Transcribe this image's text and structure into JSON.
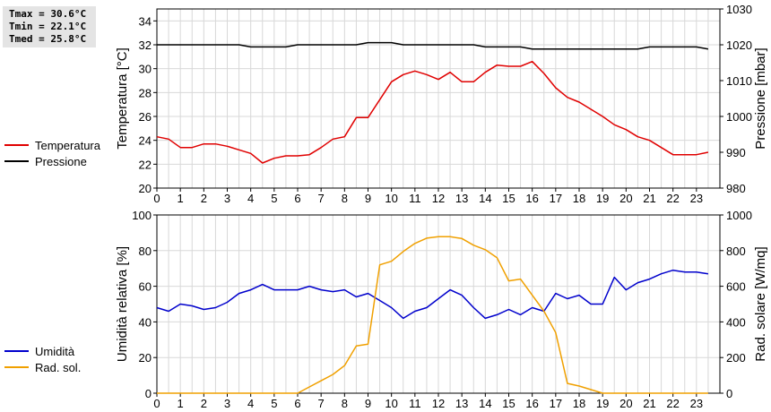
{
  "stats": {
    "tmax": "Tmax = 30.6°C",
    "tmin": "Tmin = 22.1°C",
    "tmed": "Tmed = 25.8°C"
  },
  "chart_data": [
    {
      "type": "line",
      "ylabel": "Temperatura [°C]",
      "y2label": "Pressione [mbar]",
      "xlim": [
        0,
        24
      ],
      "xticks": [
        "0",
        "1",
        "2",
        "3",
        "4",
        "5",
        "6",
        "7",
        "8",
        "9",
        "10",
        "11",
        "12",
        "13",
        "14",
        "15",
        "16",
        "17",
        "18",
        "19",
        "20",
        "21",
        "22",
        "23"
      ],
      "ylim": [
        20,
        35
      ],
      "yticks": [
        "20",
        "22",
        "24",
        "26",
        "28",
        "30",
        "32",
        "34"
      ],
      "y2lim": [
        980,
        1030
      ],
      "y2ticks": [
        "980",
        "990",
        "1000",
        "1010",
        "1020",
        "1030"
      ],
      "grid": true,
      "legend_position": "left",
      "series": [
        {
          "name": "Temperatura",
          "axis": "left",
          "color": "#e00000",
          "x": [
            0,
            0.5,
            1,
            1.5,
            2,
            2.5,
            3,
            3.5,
            4,
            4.5,
            5,
            5.5,
            6,
            6.5,
            7,
            7.5,
            8,
            8.5,
            9,
            9.5,
            10,
            10.5,
            11,
            11.5,
            12,
            12.5,
            13,
            13.5,
            14,
            14.5,
            15,
            15.5,
            16,
            16.5,
            17,
            17.5,
            18,
            18.5,
            19,
            19.5,
            20,
            20.5,
            21,
            21.5,
            22,
            22.5,
            23,
            23.5
          ],
          "values": [
            24.3,
            24.1,
            23.4,
            23.4,
            23.7,
            23.7,
            23.5,
            23.2,
            22.9,
            22.1,
            22.5,
            22.7,
            22.7,
            22.8,
            23.4,
            24.1,
            24.3,
            25.9,
            25.9,
            27.4,
            28.9,
            29.5,
            29.8,
            29.5,
            29.1,
            29.7,
            28.9,
            28.9,
            29.7,
            30.3,
            30.2,
            30.2,
            30.6,
            29.6,
            28.4,
            27.6,
            27.2,
            26.6,
            26.0,
            25.3,
            24.9,
            24.3,
            24.0,
            23.4,
            22.8,
            22.8,
            22.8,
            23.0
          ]
        },
        {
          "name": "Pressione",
          "axis": "right",
          "color": "#000000",
          "x": [
            0,
            0.5,
            1,
            1.5,
            2,
            2.5,
            3,
            3.5,
            4,
            4.5,
            5,
            5.5,
            6,
            6.5,
            7,
            7.5,
            8,
            8.5,
            9,
            9.5,
            10,
            10.5,
            11,
            11.5,
            12,
            12.5,
            13,
            13.5,
            14,
            14.5,
            15,
            15.5,
            16,
            16.5,
            17,
            17.5,
            18,
            18.5,
            19,
            19.5,
            20,
            20.5,
            21,
            21.5,
            22,
            22.5,
            23,
            23.5
          ],
          "values": [
            1020,
            1020,
            1020,
            1020,
            1020,
            1020,
            1020,
            1020,
            1019.4,
            1019.4,
            1019.4,
            1019.4,
            1020,
            1020,
            1020,
            1020,
            1020,
            1020,
            1020.6,
            1020.6,
            1020.6,
            1020,
            1020,
            1020,
            1020,
            1020,
            1020,
            1020,
            1019.4,
            1019.4,
            1019.4,
            1019.4,
            1018.8,
            1018.8,
            1018.8,
            1018.8,
            1018.8,
            1018.8,
            1018.8,
            1018.8,
            1018.8,
            1018.8,
            1019.4,
            1019.4,
            1019.4,
            1019.4,
            1019.4,
            1018.8
          ]
        }
      ]
    },
    {
      "type": "line",
      "ylabel": "Umidità relativa [%]",
      "y2label": "Rad. solare [W/mq]",
      "xlim": [
        0,
        24
      ],
      "xticks": [
        "0",
        "1",
        "2",
        "3",
        "4",
        "5",
        "6",
        "7",
        "8",
        "9",
        "10",
        "11",
        "12",
        "13",
        "14",
        "15",
        "16",
        "17",
        "18",
        "19",
        "20",
        "21",
        "22",
        "23"
      ],
      "ylim": [
        0,
        100
      ],
      "yticks": [
        "0",
        "20",
        "40",
        "60",
        "80",
        "100"
      ],
      "y2lim": [
        0,
        1000
      ],
      "y2ticks": [
        "0",
        "200",
        "400",
        "600",
        "800",
        "1000"
      ],
      "grid": true,
      "legend_position": "left",
      "series": [
        {
          "name": "Umidità",
          "axis": "left",
          "color": "#0000cc",
          "x": [
            0,
            0.5,
            1,
            1.5,
            2,
            2.5,
            3,
            3.5,
            4,
            4.5,
            5,
            5.5,
            6,
            6.5,
            7,
            7.5,
            8,
            8.5,
            9,
            9.5,
            10,
            10.5,
            11,
            11.5,
            12,
            12.5,
            13,
            13.5,
            14,
            14.5,
            15,
            15.5,
            16,
            16.5,
            17,
            17.5,
            18,
            18.5,
            19,
            19.5,
            20,
            20.5,
            21,
            21.5,
            22,
            22.5,
            23,
            23.5
          ],
          "values": [
            48,
            46,
            50,
            49,
            47,
            48,
            51,
            56,
            58,
            61,
            58,
            58,
            58,
            60,
            58,
            57,
            58,
            54,
            56,
            52,
            48,
            42,
            46,
            48,
            53,
            58,
            55,
            48,
            42,
            44,
            47,
            44,
            48,
            46,
            56,
            53,
            55,
            50,
            50,
            65,
            58,
            62,
            64,
            67,
            69,
            68,
            68,
            67
          ]
        },
        {
          "name": "Rad. sol.",
          "axis": "right",
          "color": "#f0a000",
          "x": [
            0,
            0.5,
            1,
            1.5,
            2,
            2.5,
            3,
            3.5,
            4,
            4.5,
            5,
            5.5,
            6,
            6.5,
            7,
            7.5,
            8,
            8.5,
            9,
            9.5,
            10,
            10.5,
            11,
            11.5,
            12,
            12.5,
            13,
            13.5,
            14,
            14.5,
            15,
            15.5,
            16,
            16.5,
            17,
            17.5,
            18,
            18.5,
            19,
            19.5,
            20,
            20.5,
            21,
            21.5,
            22,
            22.5,
            23,
            23.5
          ],
          "values": [
            0,
            0,
            0,
            0,
            0,
            0,
            0,
            0,
            0,
            0,
            0,
            0,
            0,
            35,
            70,
            105,
            155,
            265,
            275,
            720,
            740,
            795,
            840,
            870,
            878,
            878,
            868,
            830,
            805,
            760,
            630,
            640,
            550,
            460,
            340,
            55,
            40,
            20,
            0,
            0,
            0,
            0,
            0,
            0,
            0,
            0,
            0,
            0
          ]
        }
      ]
    }
  ]
}
